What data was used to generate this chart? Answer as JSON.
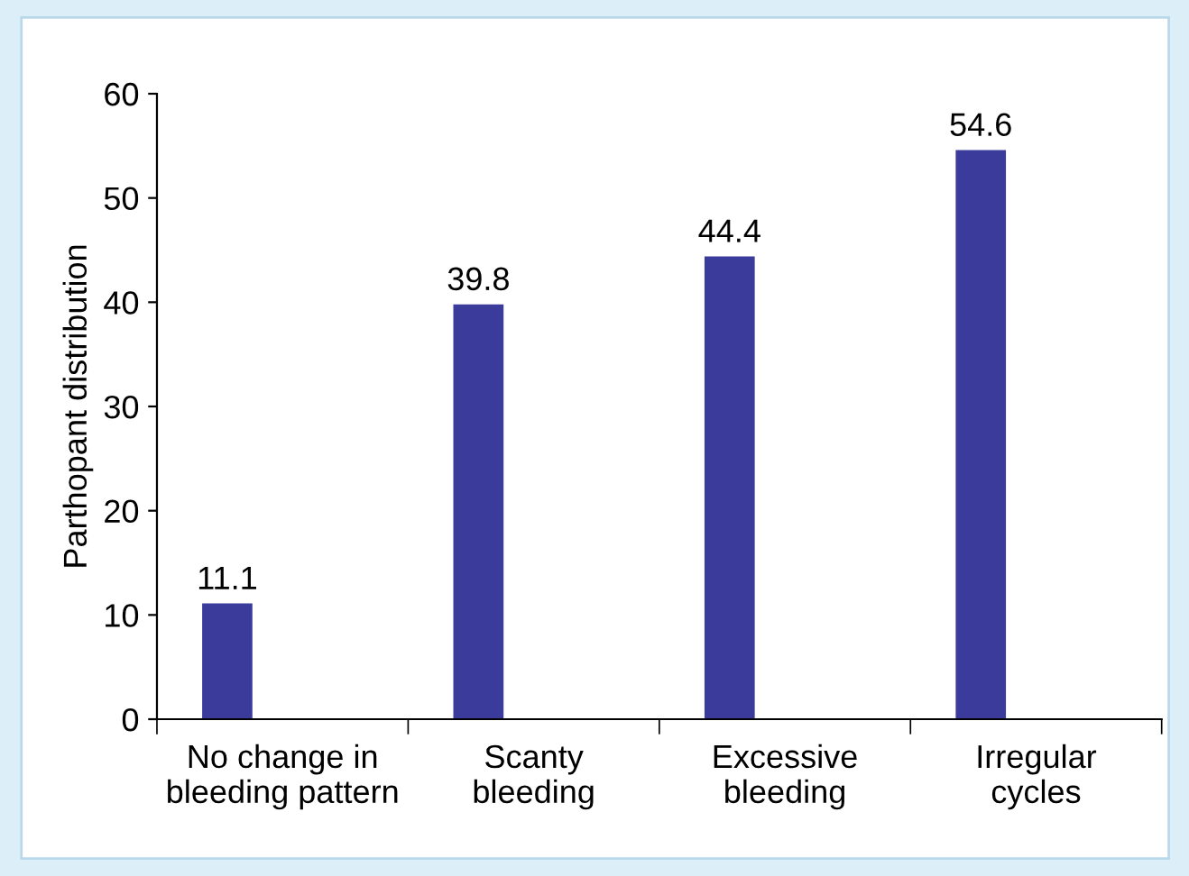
{
  "chart_data": {
    "type": "bar",
    "ylabel": "Parthopant distribution",
    "categories": [
      "No change in\nbleeding pattern",
      "Scanty\nbleeding",
      "Excessive\nbleeding",
      "Irregular\ncycles"
    ],
    "values": [
      11.1,
      39.8,
      44.4,
      54.6
    ],
    "color": "#3b3b9c",
    "ylim": [
      0,
      60
    ],
    "yticks": [
      0,
      10,
      20,
      30,
      40,
      50,
      60
    ],
    "data_labels": true,
    "grid": false,
    "legend": false
  }
}
